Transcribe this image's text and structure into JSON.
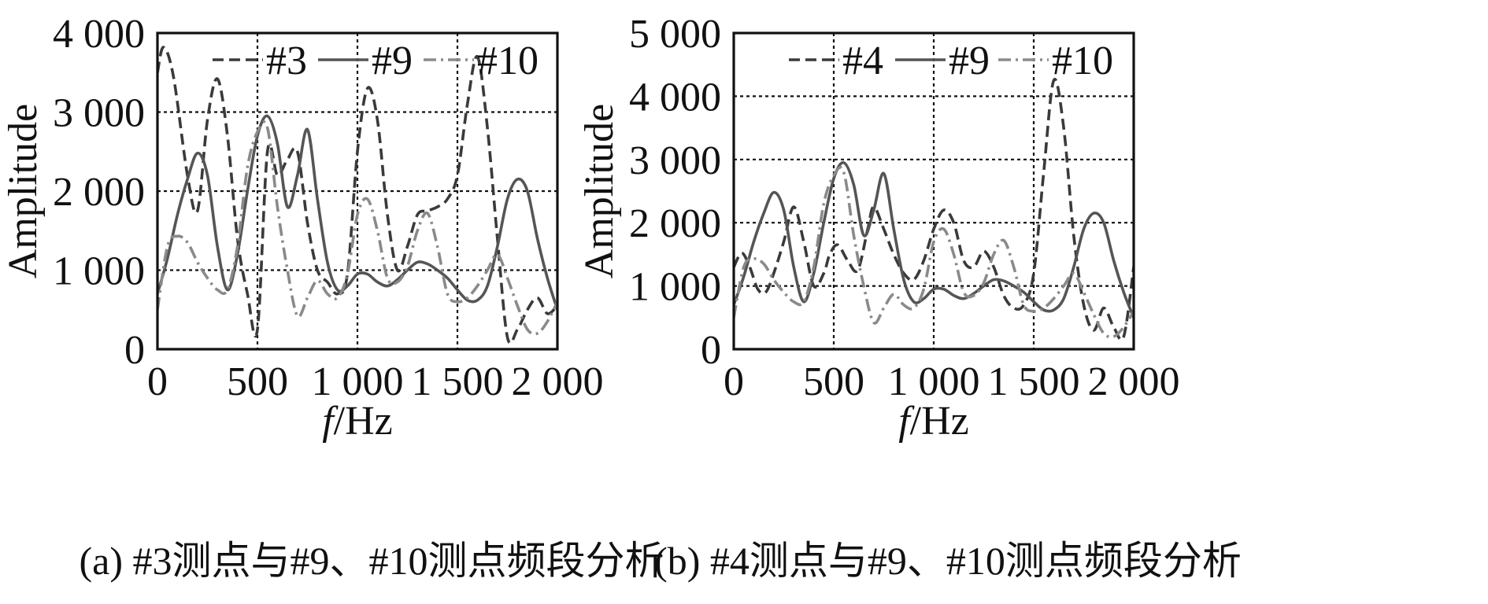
{
  "chart_data": [
    {
      "type": "line",
      "caption": "(a) #3测点与#9、#10测点频段分析",
      "xlabel_italic": "f",
      "xlabel_unit": "/Hz",
      "ylabel": "Amplitude",
      "xlim": [
        0,
        2000
      ],
      "ylim": [
        0,
        4000
      ],
      "xticks": [
        0,
        500,
        1000,
        1500,
        2000
      ],
      "xtick_labels": [
        "0",
        "500",
        "1 000",
        "1 500",
        "2 000"
      ],
      "yticks": [
        0,
        1000,
        2000,
        3000,
        4000
      ],
      "ytick_labels": [
        "0",
        "1 000",
        "2 000",
        "3 000",
        "4 000"
      ],
      "grid": true,
      "legend_position": "top",
      "series": [
        {
          "name": "#3",
          "style": "dashed",
          "color": "#3a3a3a",
          "x": [
            0,
            30,
            80,
            150,
            200,
            250,
            300,
            350,
            400,
            450,
            500,
            550,
            600,
            650,
            700,
            750,
            800,
            850,
            900,
            950,
            1000,
            1050,
            1100,
            1150,
            1200,
            1250,
            1300,
            1350,
            1400,
            1450,
            1500,
            1550,
            1600,
            1650,
            1700,
            1750,
            1800,
            1850,
            1900,
            1950,
            2000
          ],
          "y": [
            3500,
            3820,
            3450,
            2200,
            1750,
            2900,
            3420,
            2700,
            1400,
            700,
            250,
            2500,
            2200,
            2400,
            2500,
            1600,
            1000,
            850,
            700,
            950,
            2500,
            3300,
            2900,
            1700,
            1000,
            1300,
            1700,
            1750,
            1800,
            1900,
            2200,
            3100,
            3700,
            2800,
            1400,
            150,
            250,
            500,
            650,
            450,
            550
          ]
        },
        {
          "name": "#9",
          "style": "solid",
          "color": "#555555",
          "x": [
            0,
            50,
            100,
            150,
            200,
            250,
            300,
            350,
            400,
            450,
            500,
            550,
            600,
            650,
            700,
            750,
            800,
            850,
            900,
            950,
            1000,
            1050,
            1100,
            1150,
            1200,
            1250,
            1300,
            1350,
            1400,
            1450,
            1500,
            1550,
            1600,
            1650,
            1700,
            1750,
            1800,
            1850,
            1900,
            1950,
            2000
          ],
          "y": [
            700,
            1150,
            1700,
            2150,
            2480,
            2200,
            1300,
            750,
            1200,
            2000,
            2700,
            2950,
            2600,
            1800,
            2200,
            2780,
            1900,
            1100,
            750,
            800,
            950,
            950,
            850,
            800,
            880,
            1000,
            1100,
            1080,
            1000,
            900,
            750,
            620,
            620,
            800,
            1300,
            1900,
            2150,
            2000,
            1400,
            900,
            500
          ]
        },
        {
          "name": "#10",
          "style": "dashdot",
          "color": "#8a8a8a",
          "x": [
            0,
            50,
            100,
            150,
            200,
            250,
            300,
            350,
            400,
            450,
            500,
            550,
            600,
            650,
            700,
            750,
            800,
            850,
            900,
            950,
            1000,
            1050,
            1100,
            1150,
            1200,
            1250,
            1300,
            1350,
            1400,
            1450,
            1500,
            1550,
            1600,
            1650,
            1700,
            1750,
            1800,
            1850,
            1900,
            1950,
            2000
          ],
          "y": [
            500,
            1300,
            1430,
            1350,
            1100,
            900,
            750,
            750,
            1300,
            2300,
            2750,
            2800,
            1800,
            1000,
            420,
            650,
            870,
            700,
            650,
            950,
            1700,
            1900,
            1500,
            900,
            850,
            1050,
            1500,
            1720,
            1300,
            700,
            600,
            650,
            800,
            1000,
            1200,
            900,
            550,
            250,
            200,
            350,
            600
          ]
        }
      ]
    },
    {
      "type": "line",
      "caption": "(b) #4测点与#9、#10测点频段分析",
      "xlabel_italic": "f",
      "xlabel_unit": "/Hz",
      "ylabel": "Amplitude",
      "xlim": [
        0,
        2000
      ],
      "ylim": [
        0,
        5000
      ],
      "xticks": [
        0,
        500,
        1000,
        1500,
        2000
      ],
      "xtick_labels": [
        "0",
        "500",
        "1 000",
        "1 500",
        "2 000"
      ],
      "yticks": [
        0,
        1000,
        2000,
        3000,
        4000,
        5000
      ],
      "ytick_labels": [
        "0",
        "1 000",
        "2 000",
        "3 000",
        "4 000",
        "5 000"
      ],
      "grid": true,
      "legend_position": "top",
      "series": [
        {
          "name": "#4",
          "style": "dashed",
          "color": "#3a3a3a",
          "x": [
            0,
            40,
            80,
            120,
            160,
            200,
            250,
            300,
            350,
            400,
            450,
            480,
            520,
            570,
            620,
            670,
            700,
            750,
            800,
            850,
            900,
            950,
            1000,
            1050,
            1100,
            1150,
            1200,
            1250,
            1300,
            1350,
            1400,
            1450,
            1500,
            1550,
            1600,
            1650,
            1700,
            1750,
            1800,
            1850,
            1900,
            1950,
            2000
          ],
          "y": [
            1300,
            1520,
            1300,
            950,
            900,
            1200,
            1700,
            2250,
            1700,
            1000,
            1200,
            1500,
            1650,
            1400,
            1250,
            1900,
            2250,
            1900,
            1500,
            1200,
            1100,
            1400,
            1900,
            2200,
            2000,
            1400,
            1300,
            1550,
            1300,
            850,
            650,
            700,
            1200,
            2800,
            4250,
            3500,
            1800,
            700,
            300,
            650,
            350,
            200,
            1300
          ]
        },
        {
          "name": "#9",
          "style": "solid",
          "color": "#555555",
          "x": [
            0,
            50,
            100,
            150,
            200,
            250,
            300,
            350,
            400,
            450,
            500,
            550,
            600,
            650,
            700,
            750,
            800,
            850,
            900,
            950,
            1000,
            1050,
            1100,
            1150,
            1200,
            1250,
            1300,
            1350,
            1400,
            1450,
            1500,
            1550,
            1600,
            1650,
            1700,
            1750,
            1800,
            1850,
            1900,
            1950,
            2000
          ],
          "y": [
            700,
            1150,
            1700,
            2150,
            2480,
            2200,
            1300,
            750,
            1200,
            2000,
            2700,
            2950,
            2600,
            1800,
            2200,
            2780,
            1900,
            1100,
            750,
            800,
            950,
            950,
            850,
            800,
            880,
            1000,
            1100,
            1080,
            1000,
            900,
            750,
            620,
            620,
            800,
            1300,
            1900,
            2150,
            2000,
            1400,
            900,
            500
          ]
        },
        {
          "name": "#10",
          "style": "dashdot",
          "color": "#8a8a8a",
          "x": [
            0,
            50,
            100,
            150,
            200,
            250,
            300,
            350,
            400,
            450,
            500,
            550,
            600,
            650,
            700,
            750,
            800,
            850,
            900,
            950,
            1000,
            1050,
            1100,
            1150,
            1200,
            1250,
            1300,
            1350,
            1400,
            1450,
            1500,
            1550,
            1600,
            1650,
            1700,
            1750,
            1800,
            1850,
            1900,
            1950,
            2000
          ],
          "y": [
            500,
            1300,
            1430,
            1350,
            1100,
            900,
            750,
            750,
            1300,
            2300,
            2750,
            2800,
            1800,
            1000,
            420,
            650,
            870,
            700,
            650,
            950,
            1700,
            1900,
            1500,
            900,
            850,
            1050,
            1500,
            1720,
            1300,
            700,
            600,
            650,
            800,
            1000,
            1200,
            900,
            550,
            250,
            200,
            350,
            600
          ]
        }
      ]
    }
  ]
}
